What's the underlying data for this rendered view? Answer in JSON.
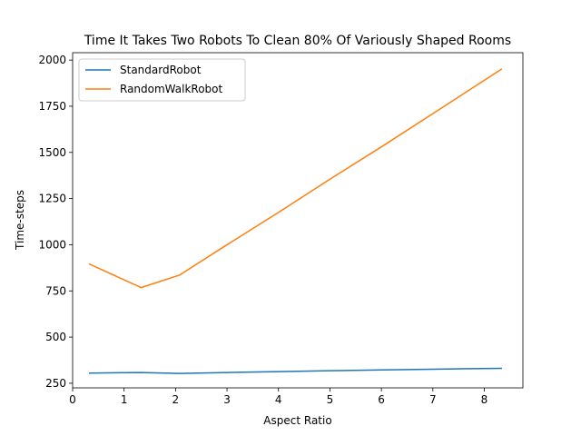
{
  "chart_data": {
    "type": "line",
    "title": "Time It Takes Two Robots To Clean 80% Of Variously Shaped Rooms",
    "xlabel": "Aspect Ratio",
    "ylabel": "Time-steps",
    "xlim": [
      0,
      8.75
    ],
    "ylim": [
      225,
      2040
    ],
    "xticks": [
      0,
      1,
      2,
      3,
      4,
      5,
      6,
      7,
      8
    ],
    "yticks": [
      250,
      500,
      750,
      1000,
      1250,
      1500,
      1750,
      2000
    ],
    "grid": false,
    "legend_position": "top-left",
    "series": [
      {
        "name": "StandardRobot",
        "color": "#1f77b4",
        "x": [
          0.33,
          1.33,
          2.08,
          3.0,
          4.0,
          5.0,
          6.0,
          7.0,
          8.33
        ],
        "y": [
          305,
          308,
          303,
          308,
          313,
          318,
          322,
          326,
          331
        ]
      },
      {
        "name": "RandomWalkRobot",
        "color": "#ff7f0e",
        "x": [
          0.33,
          1.33,
          2.08,
          3.0,
          4.0,
          5.0,
          6.0,
          7.0,
          8.33
        ],
        "y": [
          895,
          768,
          836,
          1000,
          1175,
          1355,
          1530,
          1710,
          1950
        ]
      }
    ]
  }
}
